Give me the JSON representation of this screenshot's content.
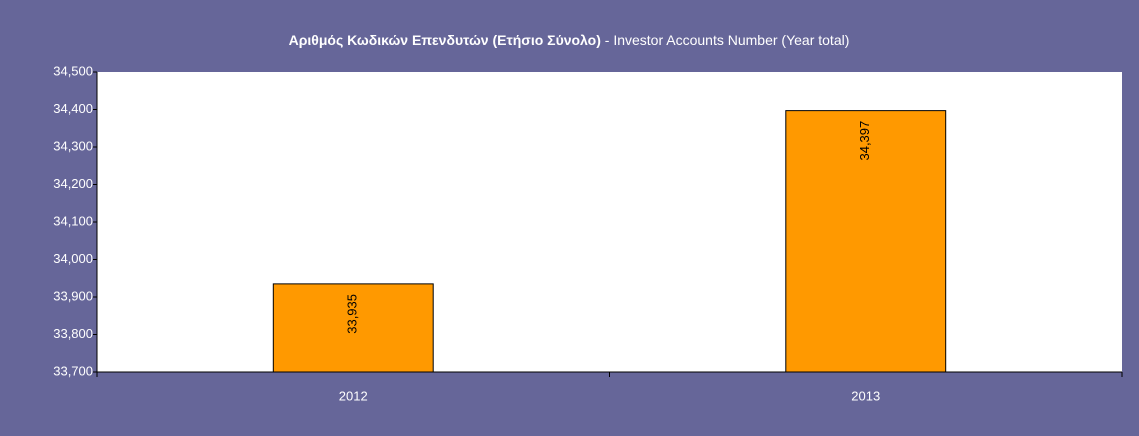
{
  "chart_data": {
    "type": "bar",
    "title": "Αριθμός Κωδικών Επενδυτών (Ετήσιο Σύνολο)",
    "subtitle": "- Investor Accounts Number (Year total)",
    "categories": [
      "2012",
      "2013"
    ],
    "values": [
      33935,
      34397
    ],
    "value_labels": [
      "33,935",
      "34,397"
    ],
    "color": "#ff9900",
    "ylim": [
      33700,
      34500
    ],
    "yticks": [
      {
        "value": 33700,
        "label": "33,700"
      },
      {
        "value": 33800,
        "label": "33,800"
      },
      {
        "value": 33900,
        "label": "33,900"
      },
      {
        "value": 34000,
        "label": "34,000"
      },
      {
        "value": 34100,
        "label": "34,100"
      },
      {
        "value": 34200,
        "label": "34,200"
      },
      {
        "value": 34300,
        "label": "34,300"
      },
      {
        "value": 34400,
        "label": "34,400"
      },
      {
        "value": 34500,
        "label": "34,500"
      }
    ],
    "grid": false
  }
}
